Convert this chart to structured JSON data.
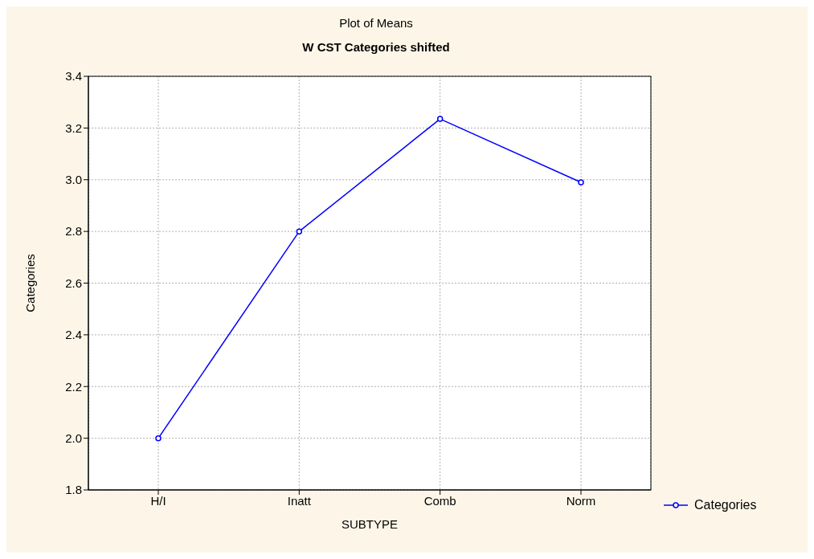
{
  "chart_data": {
    "type": "line",
    "title": "Plot of Means",
    "subtitle": "W CST Categories shifted",
    "xlabel": "SUBTYPE",
    "ylabel": "Categories",
    "categories": [
      "H/I",
      "Inatt",
      "Comb",
      "Norm"
    ],
    "series": [
      {
        "name": "Categories",
        "color": "#0000ff",
        "values": [
          2.0,
          2.8,
          3.235,
          2.99
        ]
      }
    ],
    "ylim": [
      1.8,
      3.4
    ],
    "yticks": [
      {
        "value": 1.8,
        "label": "1.8"
      },
      {
        "value": 2.0,
        "label": "2.0"
      },
      {
        "value": 2.2,
        "label": "2.2"
      },
      {
        "value": 2.4,
        "label": "2.4"
      },
      {
        "value": 2.6,
        "label": "2.6"
      },
      {
        "value": 2.8,
        "label": "2.8"
      },
      {
        "value": 3.0,
        "label": "3.0"
      },
      {
        "value": 3.2,
        "label": "3.2"
      },
      {
        "value": 3.4,
        "label": "3.4"
      }
    ],
    "grid": true,
    "legend": "bottom right",
    "marker": "circle",
    "line_style": "solid"
  }
}
